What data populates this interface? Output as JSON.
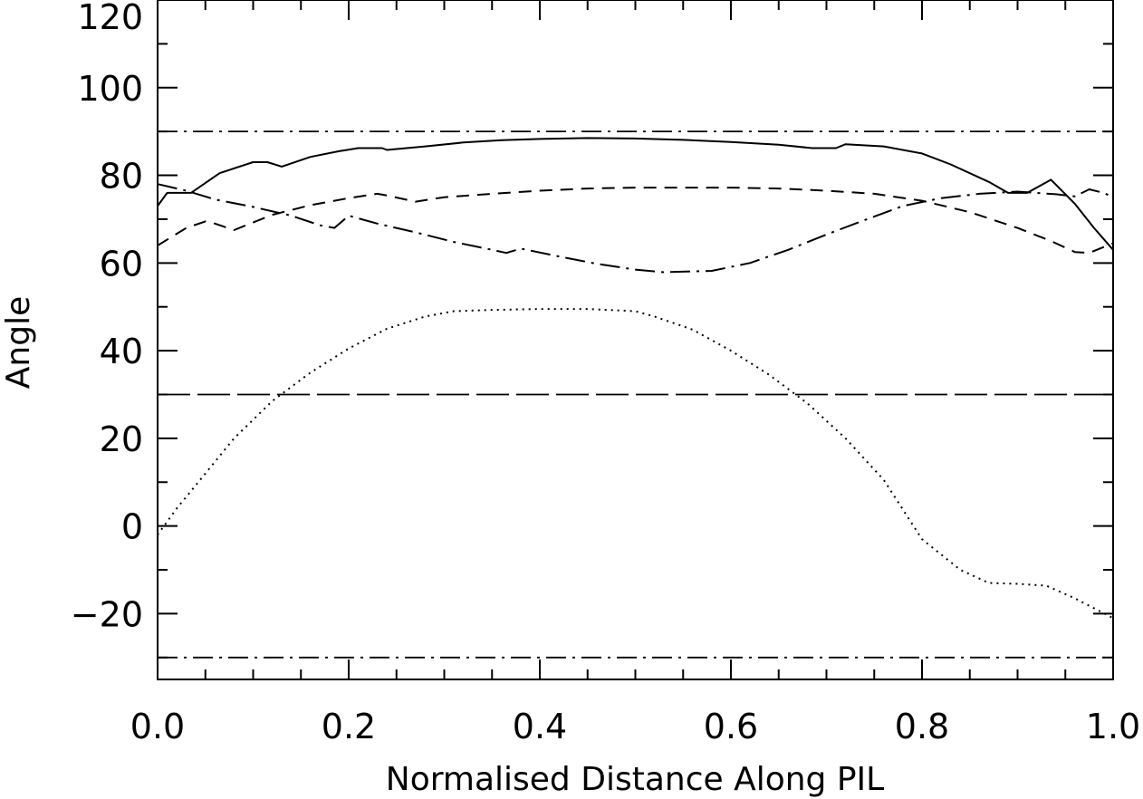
{
  "chart_data": {
    "type": "line",
    "xlabel": "Normalised Distance Along PIL",
    "ylabel": "Angle",
    "xlim": [
      0.0,
      1.0
    ],
    "ylim": [
      -35,
      120
    ],
    "x_ticks": [
      "0.0",
      "0.2",
      "0.4",
      "0.6",
      "0.8",
      "1.0"
    ],
    "y_ticks": [
      "-20",
      "0",
      "20",
      "40",
      "60",
      "80",
      "100",
      "120"
    ],
    "grid": false,
    "reference_lines": [
      {
        "y": 90,
        "style": "dash-dot"
      },
      {
        "y": 30,
        "style": "long-dash"
      },
      {
        "y": -30,
        "style": "dash-dot"
      }
    ],
    "series": [
      {
        "style": "solid",
        "points": [
          [
            0.0,
            73
          ],
          [
            0.01,
            76
          ],
          [
            0.035,
            76
          ],
          [
            0.065,
            80.5
          ],
          [
            0.1,
            83
          ],
          [
            0.115,
            83
          ],
          [
            0.13,
            82
          ],
          [
            0.16,
            84.2
          ],
          [
            0.19,
            85.5
          ],
          [
            0.21,
            86.2
          ],
          [
            0.235,
            86.2
          ],
          [
            0.24,
            85.8
          ],
          [
            0.28,
            86.6
          ],
          [
            0.32,
            87.5
          ],
          [
            0.36,
            88
          ],
          [
            0.4,
            88.3
          ],
          [
            0.45,
            88.5
          ],
          [
            0.5,
            88.4
          ],
          [
            0.55,
            88.1
          ],
          [
            0.6,
            87.6
          ],
          [
            0.65,
            87
          ],
          [
            0.685,
            86.2
          ],
          [
            0.71,
            86.2
          ],
          [
            0.72,
            87.1
          ],
          [
            0.76,
            86.6
          ],
          [
            0.8,
            85
          ],
          [
            0.83,
            82.5
          ],
          [
            0.87,
            78.5
          ],
          [
            0.89,
            76
          ],
          [
            0.91,
            76
          ],
          [
            0.935,
            79
          ],
          [
            0.96,
            73.5
          ],
          [
            0.98,
            68
          ],
          [
            1.0,
            63
          ]
        ]
      },
      {
        "style": "dashed",
        "points": [
          [
            0.0,
            64
          ],
          [
            0.03,
            68
          ],
          [
            0.05,
            69.5
          ],
          [
            0.06,
            69
          ],
          [
            0.08,
            67.5
          ],
          [
            0.12,
            71
          ],
          [
            0.16,
            73.2
          ],
          [
            0.2,
            74.8
          ],
          [
            0.23,
            75.8
          ],
          [
            0.24,
            75.4
          ],
          [
            0.27,
            74
          ],
          [
            0.3,
            75
          ],
          [
            0.35,
            75.8
          ],
          [
            0.4,
            76.5
          ],
          [
            0.45,
            77
          ],
          [
            0.5,
            77.2
          ],
          [
            0.55,
            77.2
          ],
          [
            0.6,
            77.2
          ],
          [
            0.65,
            77
          ],
          [
            0.7,
            76.5
          ],
          [
            0.75,
            75.8
          ],
          [
            0.8,
            74.2
          ],
          [
            0.85,
            71.6
          ],
          [
            0.9,
            68
          ],
          [
            0.935,
            65
          ],
          [
            0.96,
            62.5
          ],
          [
            0.975,
            62.3
          ],
          [
            1.0,
            64.5
          ]
        ]
      },
      {
        "style": "dash-dot",
        "points": [
          [
            0.0,
            78
          ],
          [
            0.03,
            76.5
          ],
          [
            0.06,
            74.5
          ],
          [
            0.1,
            72.8
          ],
          [
            0.14,
            70.8
          ],
          [
            0.17,
            68.6
          ],
          [
            0.185,
            68
          ],
          [
            0.2,
            70.8
          ],
          [
            0.23,
            69
          ],
          [
            0.27,
            67
          ],
          [
            0.31,
            64.8
          ],
          [
            0.35,
            63
          ],
          [
            0.365,
            62.3
          ],
          [
            0.38,
            63.3
          ],
          [
            0.42,
            61.5
          ],
          [
            0.46,
            59.8
          ],
          [
            0.5,
            58.5
          ],
          [
            0.53,
            57.9
          ],
          [
            0.58,
            58.2
          ],
          [
            0.62,
            60
          ],
          [
            0.66,
            63
          ],
          [
            0.7,
            66.5
          ],
          [
            0.74,
            69.8
          ],
          [
            0.78,
            73
          ],
          [
            0.82,
            74.8
          ],
          [
            0.86,
            75.8
          ],
          [
            0.9,
            76.3
          ],
          [
            0.94,
            75.7
          ],
          [
            0.96,
            75.2
          ],
          [
            0.975,
            76.8
          ],
          [
            0.99,
            76
          ],
          [
            1.0,
            75
          ]
        ]
      },
      {
        "style": "dotted",
        "points": [
          [
            0.0,
            -2
          ],
          [
            0.02,
            4
          ],
          [
            0.05,
            12
          ],
          [
            0.08,
            20
          ],
          [
            0.12,
            28.5
          ],
          [
            0.16,
            35
          ],
          [
            0.2,
            40.5
          ],
          [
            0.24,
            45
          ],
          [
            0.28,
            47.8
          ],
          [
            0.31,
            49
          ],
          [
            0.35,
            49.3
          ],
          [
            0.4,
            49.5
          ],
          [
            0.45,
            49.5
          ],
          [
            0.5,
            49
          ],
          [
            0.52,
            47.8
          ],
          [
            0.56,
            44.8
          ],
          [
            0.6,
            40
          ],
          [
            0.64,
            34.5
          ],
          [
            0.68,
            28
          ],
          [
            0.72,
            20
          ],
          [
            0.76,
            10.5
          ],
          [
            0.8,
            -3
          ],
          [
            0.84,
            -10
          ],
          [
            0.87,
            -13
          ],
          [
            0.9,
            -13.2
          ],
          [
            0.93,
            -13.6
          ],
          [
            0.96,
            -16.5
          ],
          [
            1.0,
            -21
          ]
        ]
      }
    ]
  }
}
